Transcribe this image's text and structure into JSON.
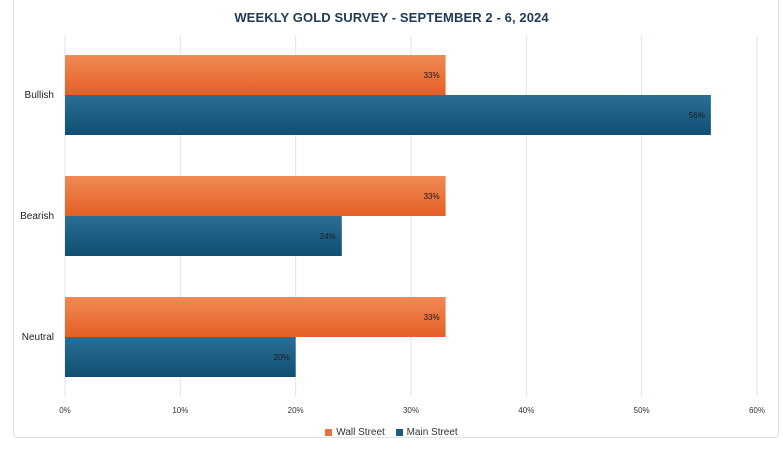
{
  "chart_data": {
    "type": "bar",
    "orientation": "horizontal",
    "title": "WEEKLY GOLD SURVEY - SEPTEMBER 2 - 6, 2024",
    "categories": [
      "Bullish",
      "Bearish",
      "Neutral"
    ],
    "series": [
      {
        "name": "Wall Street",
        "values": [
          33,
          33,
          33
        ],
        "labels": [
          "33%",
          "33%",
          "33%"
        ],
        "color": "#e8703a"
      },
      {
        "name": "Main Street",
        "values": [
          56,
          24,
          20
        ],
        "labels": [
          "56%",
          "24%",
          "20%"
        ],
        "color": "#1b5d80"
      }
    ],
    "xlim": [
      0,
      60
    ],
    "xticks": [
      0,
      10,
      20,
      30,
      40,
      50,
      60
    ],
    "xtick_labels": [
      "0%",
      "10%",
      "20%",
      "30%",
      "40%",
      "50%",
      "60%"
    ],
    "grid": true,
    "legend_position": "bottom"
  }
}
